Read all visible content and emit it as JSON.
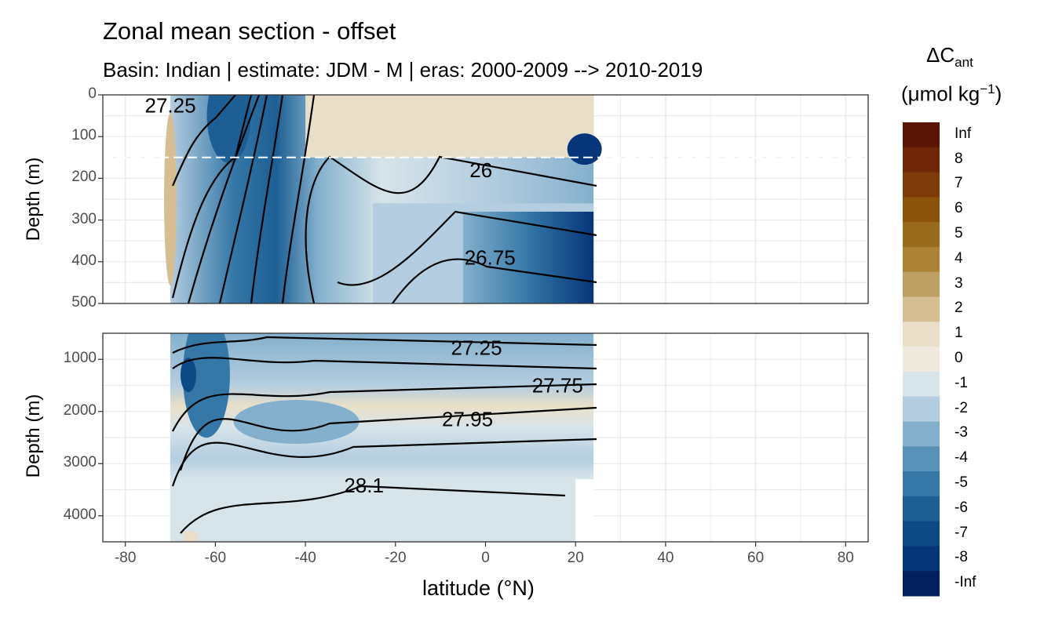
{
  "title": "Zonal mean section - offset",
  "subtitle": "Basin: Indian | estimate: JDM - M | eras: 2000-2009 --> 2010-2019",
  "legend": {
    "title_main": "ΔC",
    "title_sub": "ant",
    "units_main": "(μmol kg",
    "units_sup": "−1",
    "units_close": ")",
    "bins": [
      {
        "label": "Inf",
        "color": "#5a1505"
      },
      {
        "label": "8",
        "color": "#6e2607"
      },
      {
        "label": "7",
        "color": "#7e3a08"
      },
      {
        "label": "6",
        "color": "#8b520c"
      },
      {
        "label": "5",
        "color": "#9a6b1c"
      },
      {
        "label": "4",
        "color": "#ad8236"
      },
      {
        "label": "3",
        "color": "#bfa064"
      },
      {
        "label": "2",
        "color": "#d5bf92"
      },
      {
        "label": "1",
        "color": "#e9dfc8"
      },
      {
        "label": "0",
        "color": "#eee8dd"
      },
      {
        "label": "-1",
        "color": "#d7e4ea"
      },
      {
        "label": "-2",
        "color": "#b4cde0"
      },
      {
        "label": "-3",
        "color": "#84b0cd"
      },
      {
        "label": "-4",
        "color": "#5892b9"
      },
      {
        "label": "-5",
        "color": "#3577a6"
      },
      {
        "label": "-6",
        "color": "#1d5f94"
      },
      {
        "label": "-7",
        "color": "#0d4a85"
      },
      {
        "label": "-8",
        "color": "#063579"
      },
      {
        "label": "-Inf",
        "color": "#041f5e"
      }
    ]
  },
  "chart_data": [
    {
      "type": "heatmap",
      "panel": "upper",
      "xlabel": "latitude (°N)",
      "ylabel": "Depth (m)",
      "xlim": [
        -85,
        85
      ],
      "ylim": [
        500,
        0
      ],
      "y_ticks": [
        0,
        100,
        200,
        300,
        400,
        500
      ],
      "x_ticks": [
        -80,
        -60,
        -40,
        -20,
        0,
        20,
        40,
        60,
        80
      ],
      "data_extent_lat": [
        -70,
        24
      ],
      "reference_line_depth": 150,
      "isopycnal_labels": [
        {
          "label": "27.25",
          "lat": -70,
          "depth": 25
        },
        {
          "label": "26",
          "lat": -1,
          "depth": 180
        },
        {
          "label": "26.75",
          "lat": 1,
          "depth": 390
        }
      ],
      "field_regions": [
        {
          "lat": [
            -63,
            -52
          ],
          "depth": [
            0,
            500
          ],
          "value": -5
        },
        {
          "lat": [
            -52,
            -40
          ],
          "depth": [
            0,
            500
          ],
          "value": -3
        },
        {
          "lat": [
            -40,
            -10
          ],
          "depth": [
            150,
            500
          ],
          "value": -1
        },
        {
          "lat": [
            -40,
            24
          ],
          "depth": [
            0,
            150
          ],
          "value": 1
        },
        {
          "lat": [
            5,
            24
          ],
          "depth": [
            300,
            500
          ],
          "value": -6
        }
      ]
    },
    {
      "type": "heatmap",
      "panel": "lower",
      "xlabel": "latitude (°N)",
      "ylabel": "Depth (m)",
      "xlim": [
        -85,
        85
      ],
      "ylim": [
        4500,
        500
      ],
      "y_ticks": [
        1000,
        2000,
        3000,
        4000
      ],
      "x_ticks": [
        -80,
        -60,
        -40,
        -20,
        0,
        20,
        40,
        60,
        80
      ],
      "data_extent_lat": [
        -70,
        24
      ],
      "isopycnal_labels": [
        {
          "label": "27.25",
          "lat": -2,
          "depth": 780
        },
        {
          "label": "27.75",
          "lat": 16,
          "depth": 1500
        },
        {
          "label": "27.95",
          "lat": -4,
          "depth": 2150
        },
        {
          "label": "28.1",
          "lat": -27,
          "depth": 3420
        }
      ],
      "field_regions": [
        {
          "lat": [
            -68,
            -55
          ],
          "depth": [
            500,
            2500
          ],
          "value": -4
        },
        {
          "lat": [
            -55,
            -30
          ],
          "depth": [
            1500,
            2600
          ],
          "value": -3
        },
        {
          "lat": [
            -40,
            24
          ],
          "depth": [
            1200,
            1700
          ],
          "value": 1
        },
        {
          "lat": [
            -70,
            24
          ],
          "depth": [
            2600,
            4500
          ],
          "value": -1
        }
      ]
    }
  ]
}
